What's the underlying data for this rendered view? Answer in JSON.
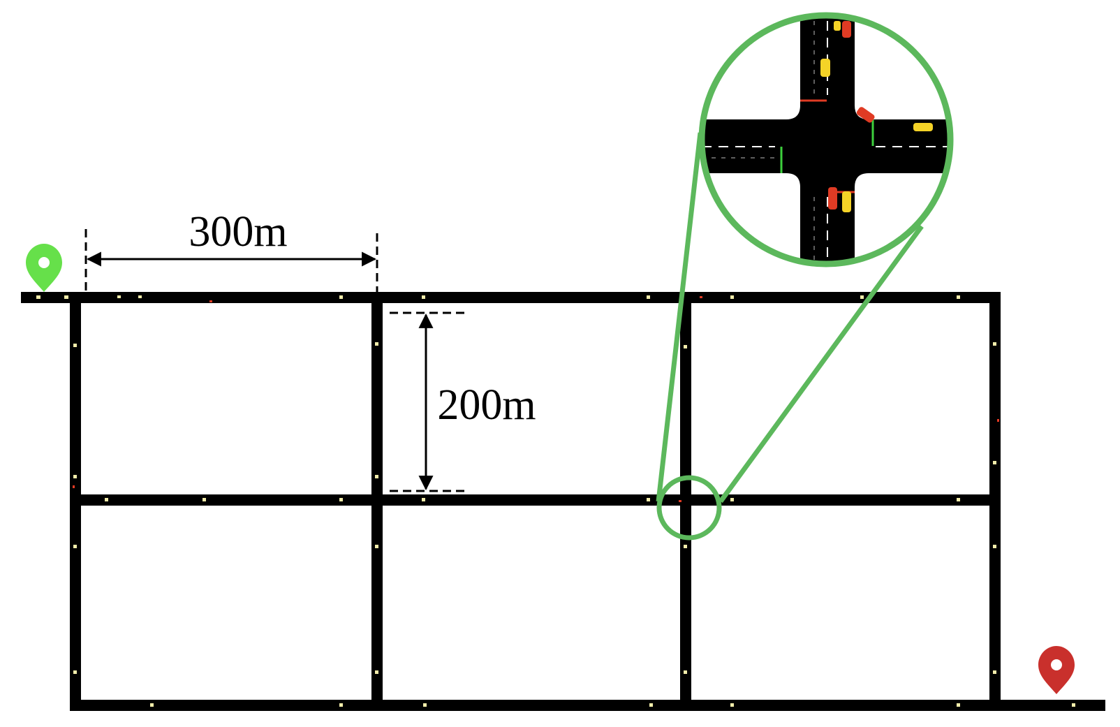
{
  "diagram": {
    "dimension_horizontal": "300m",
    "dimension_vertical": "200m",
    "start_marker_icon": "map-pin-icon",
    "end_marker_icon": "map-pin-icon",
    "magnifier_icon": "magnifier-circle"
  },
  "colors": {
    "road": "#000000",
    "lane_marking": "#ffffff",
    "magnifier": "#5cb85c",
    "start_marker": "#66e04a",
    "end_marker": "#c9302c",
    "car_yellow": "#f5d327",
    "car_red": "#e03b24",
    "stop_line_red": "#e03b24",
    "stop_line_green": "#3dcf3d",
    "sensor": "#f2ecaa"
  }
}
